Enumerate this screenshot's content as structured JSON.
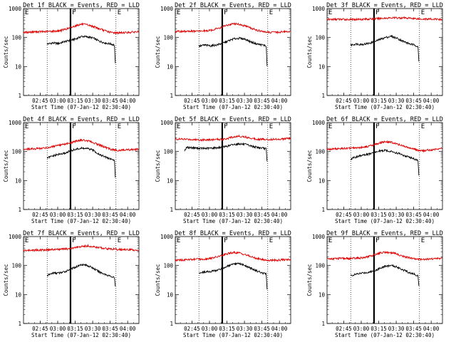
{
  "figure": {
    "ylabel": "Counts/sec",
    "xlabel": "Start Time (07-Jan-12 02:30:40)",
    "y_ticks": [
      "1",
      "10",
      "100",
      "1000"
    ],
    "x_ticks": [
      "02:45",
      "03:00",
      "03:15",
      "03:30",
      "03:45",
      "04:00"
    ],
    "marker_labels": [
      "E",
      "F",
      "E"
    ],
    "colors": {
      "events": "#000000",
      "lld": "#e00000",
      "background": "#ffffff"
    }
  },
  "chart_data": [
    {
      "type": "line",
      "title": "Det 1f BLACK = Events, RED = LLD",
      "xlabel": "Start Time (07-Jan-12 02:30:40)",
      "ylabel": "Counts/sec",
      "x_unit": "minutes after 02:30:40",
      "xlim": [
        0,
        99
      ],
      "ylim": [
        1,
        1000
      ],
      "yscale": "log",
      "x_ticks": [
        "02:45",
        "03:00",
        "03:15",
        "03:30",
        "03:45",
        "04:00"
      ],
      "vlines": {
        "solid": 40.3,
        "dotted": [
          20.3,
          79.3
        ]
      },
      "series": [
        {
          "name": "Events",
          "color": "black",
          "x": [
            20.3,
            25,
            30,
            35,
            40,
            45,
            50,
            55,
            60,
            65,
            70,
            75,
            78,
            79
          ],
          "y": [
            60,
            65,
            62,
            72,
            80,
            90,
            110,
            105,
            95,
            75,
            65,
            60,
            55,
            8
          ]
        },
        {
          "name": "LLD",
          "color": "red",
          "x": [
            0,
            10,
            20,
            30,
            35,
            40,
            45,
            50,
            55,
            60,
            65,
            70,
            75,
            80,
            90,
            99
          ],
          "y": [
            150,
            158,
            160,
            170,
            190,
            215,
            260,
            290,
            270,
            240,
            200,
            170,
            150,
            145,
            150,
            160
          ]
        }
      ]
    },
    {
      "type": "line",
      "title": "Det 2f BLACK = Events, RED = LLD",
      "xlabel": "Start Time (07-Jan-12 02:30:40)",
      "ylabel": "Counts/sec",
      "x_unit": "minutes after 02:30:40",
      "xlim": [
        0,
        99
      ],
      "ylim": [
        1,
        1000
      ],
      "yscale": "log",
      "x_ticks": [
        "02:45",
        "03:00",
        "03:15",
        "03:30",
        "03:45",
        "04:00"
      ],
      "vlines": {
        "solid": 40.3,
        "dotted": [
          20.3,
          79.3
        ]
      },
      "series": [
        {
          "name": "Events",
          "color": "black",
          "x": [
            20.3,
            25,
            30,
            35,
            40,
            45,
            50,
            55,
            60,
            65,
            70,
            75,
            78,
            79
          ],
          "y": [
            50,
            55,
            52,
            55,
            62,
            75,
            90,
            95,
            88,
            70,
            60,
            55,
            52,
            6
          ]
        },
        {
          "name": "LLD",
          "color": "red",
          "x": [
            0,
            10,
            20,
            30,
            35,
            40,
            45,
            50,
            55,
            60,
            65,
            70,
            75,
            80,
            90,
            99
          ],
          "y": [
            160,
            165,
            165,
            175,
            200,
            230,
            270,
            300,
            285,
            250,
            210,
            180,
            160,
            150,
            155,
            165
          ]
        }
      ]
    },
    {
      "type": "line",
      "title": "Det 3f BLACK = Events, RED = LLD",
      "xlabel": "Start Time (07-Jan-12 02:30:40)",
      "ylabel": "Counts/sec",
      "x_unit": "minutes after 02:30:40",
      "xlim": [
        0,
        99
      ],
      "ylim": [
        1,
        1000
      ],
      "yscale": "log",
      "x_ticks": [
        "02:45",
        "03:00",
        "03:15",
        "03:30",
        "03:45",
        "04:00"
      ],
      "vlines": {
        "solid": 40.3,
        "dotted": [
          20.3,
          79.3
        ]
      },
      "series": [
        {
          "name": "Events",
          "color": "black",
          "x": [
            20.3,
            25,
            30,
            35,
            40,
            45,
            50,
            55,
            60,
            65,
            70,
            75,
            78,
            79
          ],
          "y": [
            55,
            60,
            58,
            62,
            70,
            85,
            100,
            110,
            95,
            75,
            62,
            55,
            50,
            10
          ]
        },
        {
          "name": "LLD",
          "color": "red",
          "x": [
            0,
            10,
            20,
            30,
            40,
            50,
            60,
            70,
            80,
            90,
            99
          ],
          "y": [
            420,
            425,
            420,
            430,
            440,
            470,
            480,
            470,
            440,
            430,
            425
          ]
        }
      ]
    },
    {
      "type": "line",
      "title": "Det 4f BLACK = Events, RED = LLD",
      "xlabel": "Start Time (07-Jan-12 02:30:40)",
      "ylabel": "Counts/sec",
      "x_unit": "minutes after 02:30:40",
      "xlim": [
        0,
        99
      ],
      "ylim": [
        1,
        1000
      ],
      "yscale": "log",
      "x_ticks": [
        "02:45",
        "03:00",
        "03:15",
        "03:30",
        "03:45",
        "04:00"
      ],
      "vlines": {
        "solid": 40.3,
        "dotted": [
          20.3,
          79.3
        ]
      },
      "series": [
        {
          "name": "Events",
          "color": "black",
          "x": [
            20.3,
            25,
            30,
            35,
            40,
            45,
            50,
            55,
            60,
            65,
            70,
            75,
            78,
            79
          ],
          "y": [
            60,
            70,
            80,
            85,
            105,
            120,
            130,
            125,
            110,
            80,
            65,
            55,
            50,
            8
          ]
        },
        {
          "name": "LLD",
          "color": "red",
          "x": [
            0,
            10,
            20,
            30,
            35,
            40,
            45,
            50,
            55,
            60,
            65,
            70,
            75,
            80,
            90,
            99
          ],
          "y": [
            120,
            125,
            135,
            160,
            175,
            200,
            230,
            250,
            235,
            200,
            170,
            140,
            120,
            110,
            115,
            120
          ]
        }
      ]
    },
    {
      "type": "line",
      "title": "Det 5f BLACK = Events, RED = LLD",
      "xlabel": "Start Time (07-Jan-12 02:30:40)",
      "ylabel": "Counts/sec",
      "x_unit": "minutes after 02:30:40",
      "xlim": [
        0,
        99
      ],
      "ylim": [
        1,
        1000
      ],
      "yscale": "log",
      "x_ticks": [
        "02:45",
        "03:00",
        "03:15",
        "03:30",
        "03:45",
        "04:00"
      ],
      "vlines": {
        "solid": 40.3,
        "dotted": [
          20.3,
          79.3
        ]
      },
      "series": [
        {
          "name": "Events",
          "color": "black",
          "x": [
            8,
            10,
            15,
            20,
            25,
            30,
            35,
            40,
            45,
            50,
            55,
            60,
            65,
            70,
            75,
            78,
            79
          ],
          "y": [
            110,
            140,
            135,
            130,
            128,
            130,
            135,
            140,
            155,
            175,
            185,
            175,
            155,
            140,
            130,
            125,
            30
          ]
        },
        {
          "name": "LLD",
          "color": "red",
          "x": [
            0,
            10,
            20,
            30,
            40,
            45,
            50,
            55,
            60,
            65,
            70,
            80,
            90,
            99
          ],
          "y": [
            270,
            265,
            255,
            255,
            265,
            285,
            320,
            340,
            320,
            290,
            270,
            260,
            270,
            285
          ]
        }
      ]
    },
    {
      "type": "line",
      "title": "Det 6f BLACK = Events, RED = LLD",
      "xlabel": "Start Time (07-Jan-12 02:30:40)",
      "ylabel": "Counts/sec",
      "x_unit": "minutes after 02:30:40",
      "xlim": [
        0,
        99
      ],
      "ylim": [
        1,
        1000
      ],
      "yscale": "log",
      "x_ticks": [
        "02:45",
        "03:00",
        "03:15",
        "03:30",
        "03:45",
        "04:00"
      ],
      "vlines": {
        "solid": 40.3,
        "dotted": [
          20.3,
          79.3
        ]
      },
      "series": [
        {
          "name": "Events",
          "color": "black",
          "x": [
            20.3,
            25,
            30,
            35,
            40,
            45,
            50,
            55,
            60,
            65,
            70,
            75,
            78,
            79
          ],
          "y": [
            55,
            65,
            75,
            80,
            90,
            105,
            110,
            100,
            90,
            75,
            65,
            55,
            50,
            10
          ]
        },
        {
          "name": "LLD",
          "color": "red",
          "x": [
            0,
            10,
            20,
            30,
            35,
            40,
            45,
            50,
            55,
            60,
            65,
            70,
            75,
            80,
            90,
            99
          ],
          "y": [
            120,
            125,
            130,
            140,
            150,
            170,
            195,
            220,
            210,
            180,
            160,
            135,
            120,
            105,
            115,
            130
          ]
        }
      ]
    },
    {
      "type": "line",
      "title": "Det 7f BLACK = Events, RED = LLD",
      "xlabel": "Start Time (07-Jan-12 02:30:40)",
      "ylabel": "Counts/sec",
      "x_unit": "minutes after 02:30:40",
      "xlim": [
        0,
        99
      ],
      "ylim": [
        1,
        1000
      ],
      "yscale": "log",
      "x_ticks": [
        "02:45",
        "03:00",
        "03:15",
        "03:30",
        "03:45",
        "04:00"
      ],
      "vlines": {
        "solid": 40.3,
        "dotted": [
          20.3,
          79.3
        ]
      },
      "series": [
        {
          "name": "Events",
          "color": "black",
          "x": [
            20.3,
            25,
            30,
            35,
            40,
            45,
            50,
            55,
            60,
            65,
            70,
            75,
            78,
            79
          ],
          "y": [
            45,
            55,
            55,
            60,
            75,
            90,
            110,
            100,
            80,
            60,
            50,
            42,
            38,
            15
          ]
        },
        {
          "name": "LLD",
          "color": "red",
          "x": [
            0,
            10,
            20,
            30,
            40,
            45,
            50,
            55,
            60,
            70,
            80,
            90,
            99
          ],
          "y": [
            330,
            340,
            350,
            360,
            380,
            420,
            450,
            480,
            440,
            390,
            360,
            350,
            340
          ]
        }
      ]
    },
    {
      "type": "line",
      "title": "Det 8f BLACK = Events, RED = LLD",
      "xlabel": "Start Time (07-Jan-12 02:30:40)",
      "ylabel": "Counts/sec",
      "x_unit": "minutes after 02:30:40",
      "xlim": [
        0,
        99
      ],
      "ylim": [
        1,
        1000
      ],
      "yscale": "log",
      "x_ticks": [
        "02:45",
        "03:00",
        "03:15",
        "03:30",
        "03:45",
        "04:00"
      ],
      "vlines": {
        "solid": 40.3,
        "dotted": [
          20.3,
          79.3
        ]
      },
      "series": [
        {
          "name": "Events",
          "color": "black",
          "x": [
            20.3,
            25,
            30,
            35,
            40,
            45,
            50,
            55,
            60,
            65,
            70,
            75,
            78,
            79
          ],
          "y": [
            55,
            60,
            62,
            68,
            78,
            95,
            110,
            115,
            100,
            80,
            65,
            55,
            50,
            10
          ]
        },
        {
          "name": "LLD",
          "color": "red",
          "x": [
            0,
            10,
            20,
            30,
            35,
            40,
            45,
            50,
            55,
            60,
            65,
            70,
            75,
            80,
            90,
            99
          ],
          "y": [
            150,
            160,
            165,
            175,
            195,
            220,
            260,
            285,
            270,
            240,
            200,
            175,
            160,
            150,
            155,
            165
          ]
        }
      ]
    },
    {
      "type": "line",
      "title": "Det 9f BLACK = Events, RED = LLD",
      "xlabel": "Start Time (07-Jan-12 02:30:40)",
      "ylabel": "Counts/sec",
      "x_unit": "minutes after 02:30:40",
      "xlim": [
        0,
        99
      ],
      "ylim": [
        1,
        1000
      ],
      "yscale": "log",
      "x_ticks": [
        "02:45",
        "03:00",
        "03:15",
        "03:30",
        "03:45",
        "04:00"
      ],
      "vlines": {
        "solid": 40.3,
        "dotted": [
          20.3,
          79.3
        ]
      },
      "series": [
        {
          "name": "Events",
          "color": "black",
          "x": [
            20.3,
            25,
            30,
            35,
            40,
            45,
            50,
            55,
            60,
            65,
            70,
            75,
            78,
            79
          ],
          "y": [
            45,
            50,
            55,
            58,
            65,
            80,
            95,
            100,
            90,
            72,
            58,
            50,
            45,
            15
          ]
        },
        {
          "name": "LLD",
          "color": "red",
          "x": [
            0,
            10,
            20,
            30,
            35,
            40,
            45,
            50,
            55,
            60,
            65,
            70,
            75,
            80,
            90,
            99
          ],
          "y": [
            170,
            175,
            175,
            185,
            200,
            230,
            270,
            290,
            275,
            250,
            210,
            185,
            170,
            165,
            170,
            180
          ]
        }
      ]
    }
  ]
}
